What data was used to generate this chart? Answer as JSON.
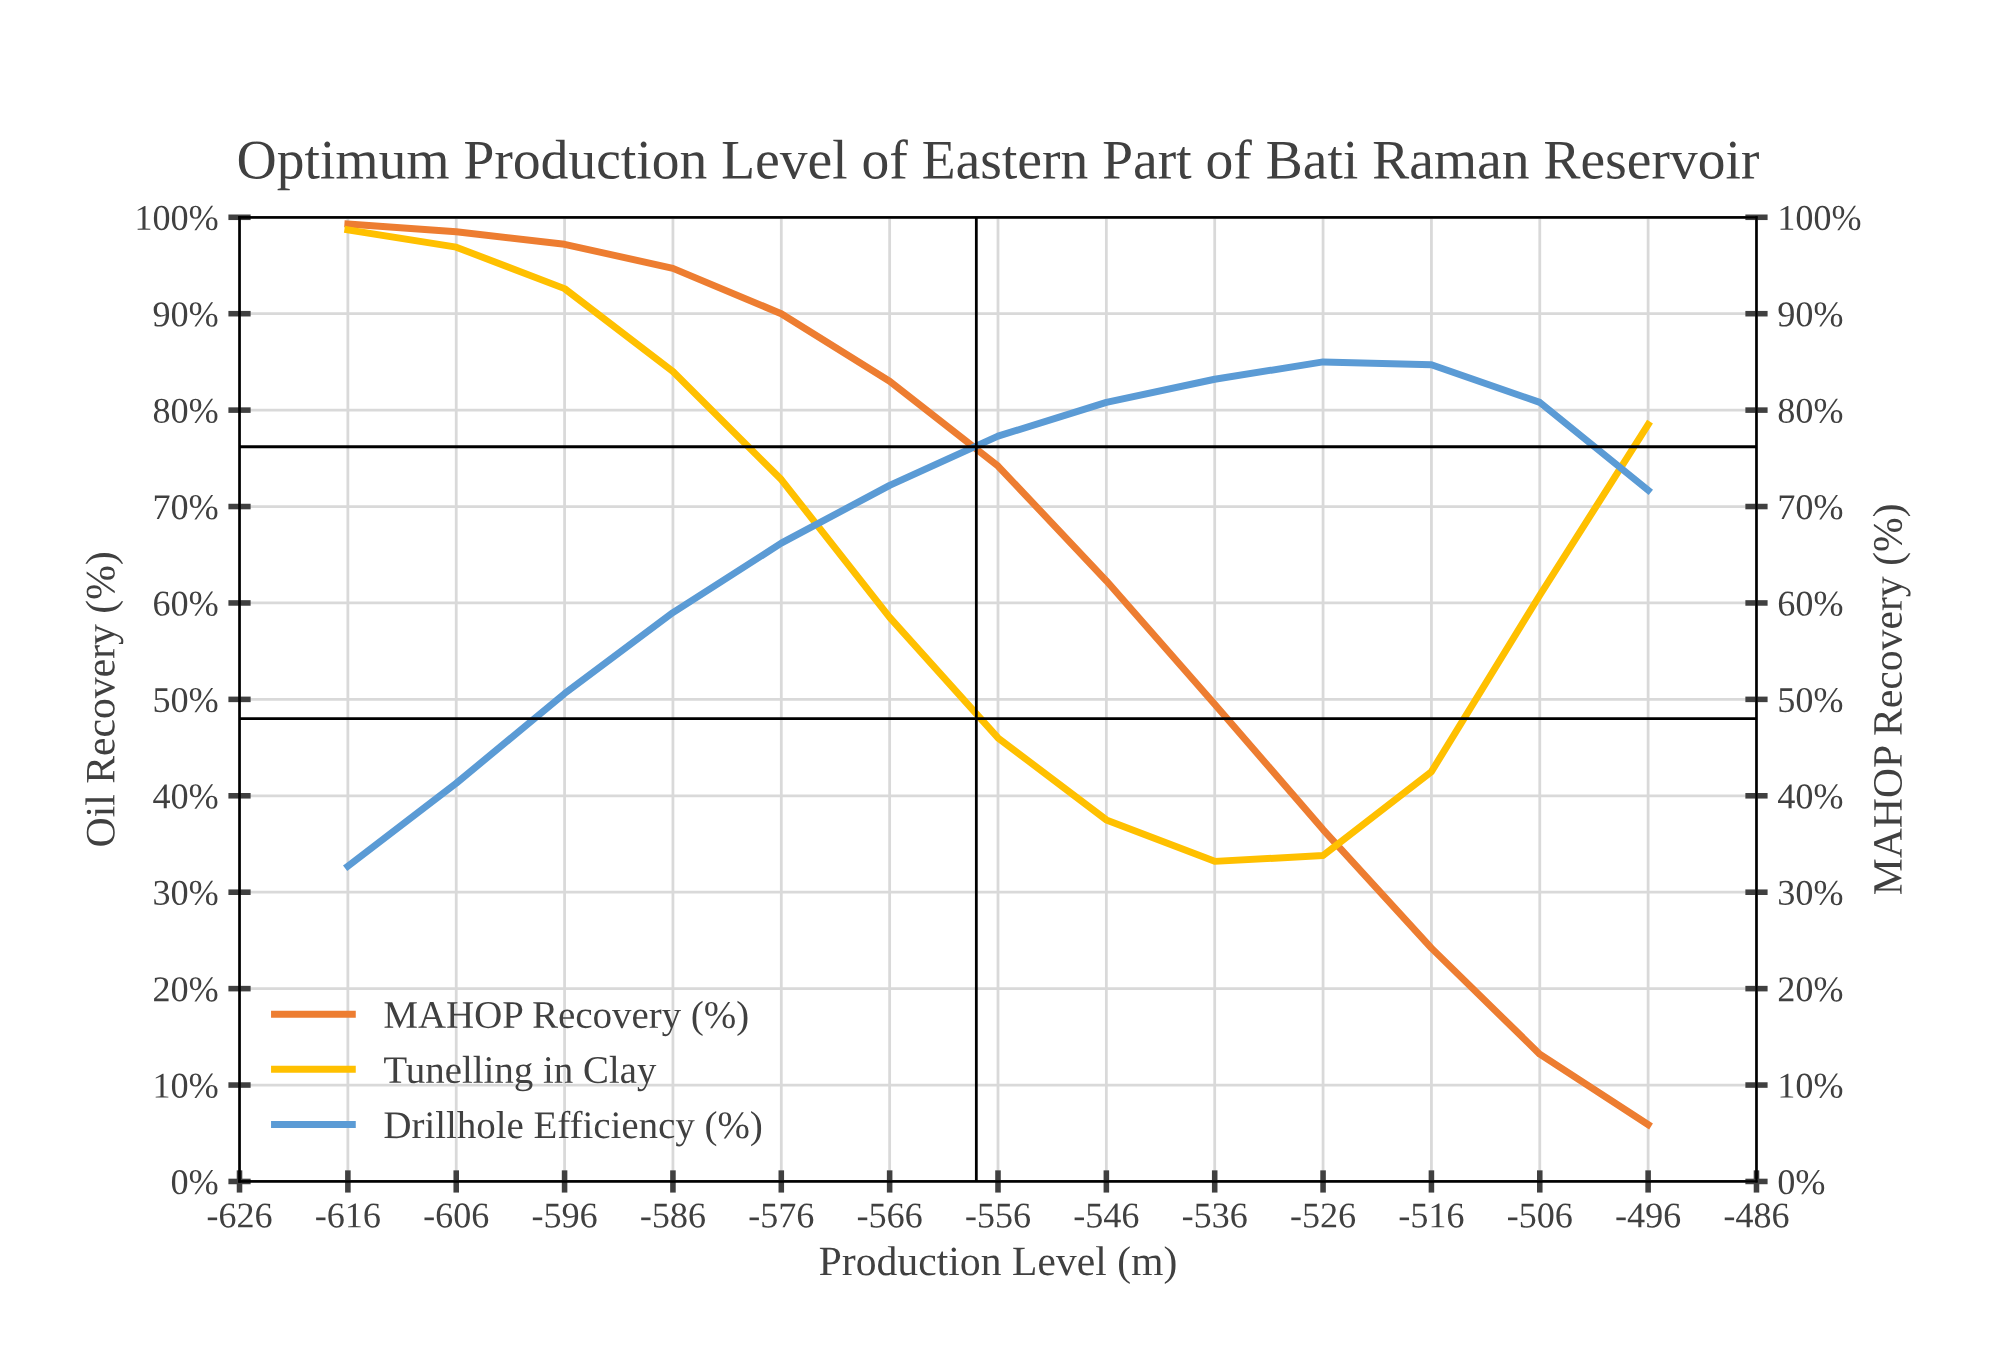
{
  "chart_data": {
    "type": "line",
    "title": "Optimum Production Level of Eastern Part of Bati Raman Reservoir",
    "xlabel": "Production Level (m)",
    "ylabel": "Oil Recovery (%)",
    "y2label": "MAHOP Recovery (%)",
    "x": [
      -616,
      -606,
      -596,
      -586,
      -576,
      -566,
      -556,
      -546,
      -536,
      -526,
      -516,
      -506,
      -496
    ],
    "series": [
      {
        "name": "MAHOP Recovery (%)",
        "color": "#ed7d31",
        "values": [
          99.3,
          98.5,
          97.2,
          94.7,
          90.0,
          83.0,
          74.2,
          62.3,
          49.5,
          36.5,
          24.2,
          13.2,
          5.9
        ]
      },
      {
        "name": "Tunelling in Clay",
        "color": "#ffc000",
        "values": [
          98.7,
          96.9,
          92.6,
          84.0,
          72.8,
          58.5,
          46.0,
          37.5,
          33.2,
          33.8,
          42.5,
          60.8,
          78.5
        ]
      },
      {
        "name": "Drillhole Efficiency (%)",
        "color": "#5b9bd5",
        "values": [
          32.7,
          41.3,
          50.6,
          59.0,
          66.2,
          72.2,
          77.3,
          80.8,
          83.2,
          85.0,
          84.7,
          80.8,
          71.7
        ]
      }
    ],
    "xlim": [
      -626,
      -486
    ],
    "xticks": [
      -626,
      -616,
      -606,
      -596,
      -586,
      -576,
      -566,
      -556,
      -546,
      -536,
      -526,
      -516,
      -506,
      -496,
      -486
    ],
    "ylim": [
      0,
      100
    ],
    "yticks": [
      {
        "value": 0,
        "label": "0%"
      },
      {
        "value": 10,
        "label": "10%"
      },
      {
        "value": 20,
        "label": "20%"
      },
      {
        "value": 30,
        "label": "30%"
      },
      {
        "value": 40,
        "label": "40%"
      },
      {
        "value": 50,
        "label": "50%"
      },
      {
        "value": 60,
        "label": "60%"
      },
      {
        "value": 70,
        "label": "70%"
      },
      {
        "value": 80,
        "label": "80%"
      },
      {
        "value": 90,
        "label": "90%"
      },
      {
        "value": 100,
        "label": "100%"
      }
    ],
    "y2lim": [
      0,
      100
    ],
    "y2ticks": [
      {
        "value": 0,
        "label": "0%"
      },
      {
        "value": 10,
        "label": "10%"
      },
      {
        "value": 20,
        "label": "20%"
      },
      {
        "value": 30,
        "label": "30%"
      },
      {
        "value": 40,
        "label": "40%"
      },
      {
        "value": 50,
        "label": "50%"
      },
      {
        "value": 60,
        "label": "60%"
      },
      {
        "value": 70,
        "label": "70%"
      },
      {
        "value": 80,
        "label": "80%"
      },
      {
        "value": 90,
        "label": "90%"
      },
      {
        "value": 100,
        "label": "100%"
      }
    ],
    "ref_lines": [
      {
        "axis": "y",
        "value": 76.2,
        "color": "#000000"
      },
      {
        "axis": "y",
        "value": 48,
        "color": "#000000"
      },
      {
        "axis": "x",
        "value": -558,
        "color": "#000000"
      }
    ],
    "grid": true,
    "legend": "bottom left",
    "marker": "none",
    "line_style": "solid"
  }
}
